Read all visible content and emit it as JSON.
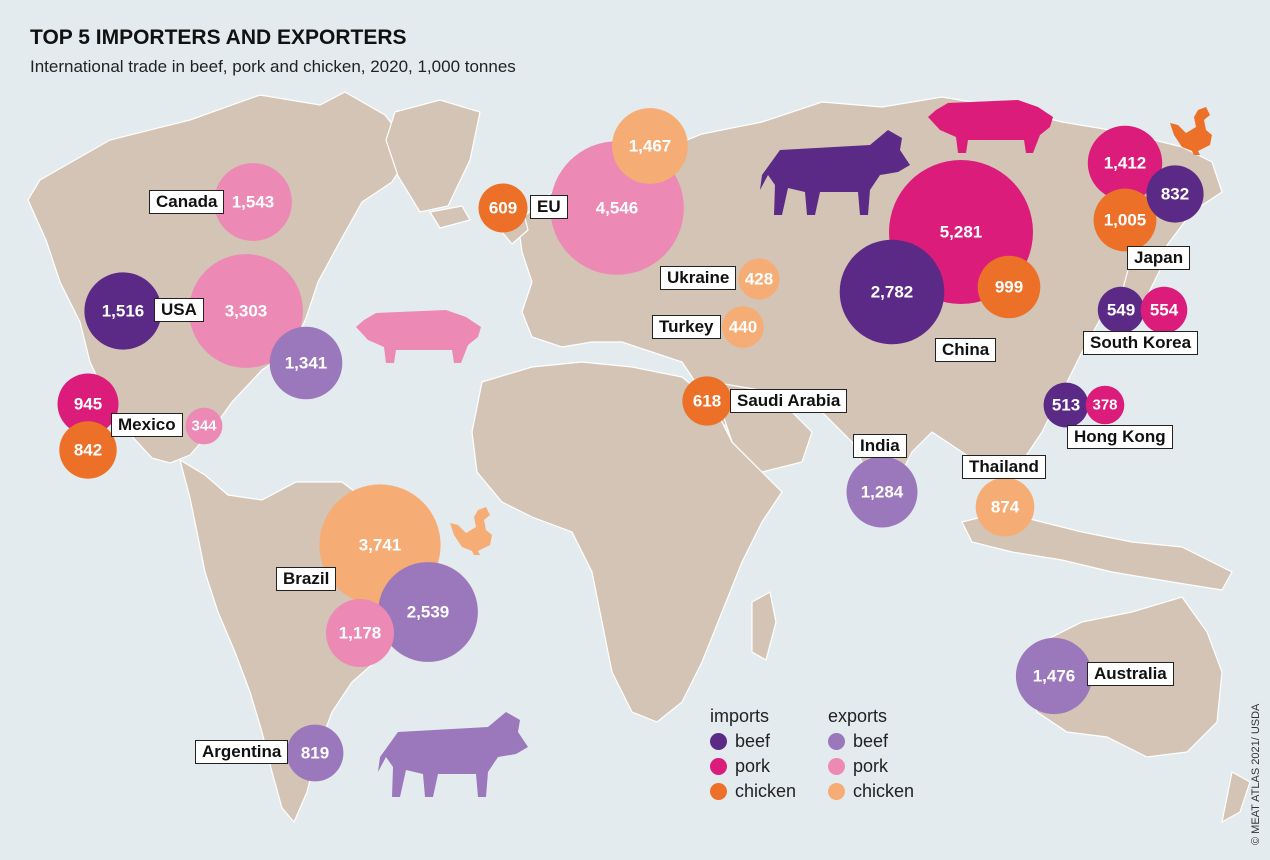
{
  "title": "TOP 5 IMPORTERS AND EXPORTERS",
  "subtitle": "International trade in beef, pork and chicken, 2020, 1,000 tonnes",
  "colors": {
    "ocean": "#e4ebee",
    "land": "#d3c4b5",
    "land_dark": "#bca999",
    "imports_beef": "#5b2a86",
    "imports_pork": "#dc1c7b",
    "imports_chicken": "#ec7028",
    "exports_beef": "#9b77bc",
    "exports_pork": "#ec89b5",
    "exports_chicken": "#f5ad75"
  },
  "legend": {
    "imports": {
      "heading": "imports",
      "items": [
        "beef",
        "pork",
        "chicken"
      ]
    },
    "exports": {
      "heading": "exports",
      "items": [
        "beef",
        "pork",
        "chicken"
      ]
    }
  },
  "countries": [
    {
      "name": "Canada"
    },
    {
      "name": "EU"
    },
    {
      "name": "USA"
    },
    {
      "name": "Mexico"
    },
    {
      "name": "Ukraine"
    },
    {
      "name": "Turkey"
    },
    {
      "name": "Saudi Arabia"
    },
    {
      "name": "China"
    },
    {
      "name": "Japan"
    },
    {
      "name": "South Korea"
    },
    {
      "name": "Hong Kong"
    },
    {
      "name": "India"
    },
    {
      "name": "Thailand"
    },
    {
      "name": "Brazil"
    },
    {
      "name": "Argentina"
    },
    {
      "name": "Australia"
    }
  ],
  "bubbles": [
    {
      "country": "Canada",
      "flow": "exports",
      "meat": "pork",
      "value": 1543,
      "label": "1,543"
    },
    {
      "country": "EU",
      "flow": "imports",
      "meat": "chicken",
      "value": 609,
      "label": "609"
    },
    {
      "country": "EU",
      "flow": "exports",
      "meat": "pork",
      "value": 4546,
      "label": "4,546"
    },
    {
      "country": "EU",
      "flow": "exports",
      "meat": "chicken",
      "value": 1467,
      "label": "1,467"
    },
    {
      "country": "USA",
      "flow": "imports",
      "meat": "beef",
      "value": 1516,
      "label": "1,516"
    },
    {
      "country": "USA",
      "flow": "exports",
      "meat": "pork",
      "value": 3303,
      "label": "3,303"
    },
    {
      "country": "USA",
      "flow": "exports",
      "meat": "beef",
      "value": 1341,
      "label": "1,341"
    },
    {
      "country": "Mexico",
      "flow": "imports",
      "meat": "pork",
      "value": 945,
      "label": "945"
    },
    {
      "country": "Mexico",
      "flow": "imports",
      "meat": "chicken",
      "value": 842,
      "label": "842"
    },
    {
      "country": "Mexico",
      "flow": "exports",
      "meat": "pork",
      "value": 344,
      "label": "344"
    },
    {
      "country": "Ukraine",
      "flow": "exports",
      "meat": "chicken",
      "value": 428,
      "label": "428"
    },
    {
      "country": "Turkey",
      "flow": "exports",
      "meat": "chicken",
      "value": 440,
      "label": "440"
    },
    {
      "country": "Saudi Arabia",
      "flow": "imports",
      "meat": "chicken",
      "value": 618,
      "label": "618"
    },
    {
      "country": "China",
      "flow": "imports",
      "meat": "pork",
      "value": 5281,
      "label": "5,281"
    },
    {
      "country": "China",
      "flow": "imports",
      "meat": "beef",
      "value": 2782,
      "label": "2,782"
    },
    {
      "country": "China",
      "flow": "imports",
      "meat": "chicken",
      "value": 999,
      "label": "999"
    },
    {
      "country": "Japan",
      "flow": "imports",
      "meat": "pork",
      "value": 1412,
      "label": "1,412"
    },
    {
      "country": "Japan",
      "flow": "imports",
      "meat": "chicken",
      "value": 1005,
      "label": "1,005"
    },
    {
      "country": "Japan",
      "flow": "imports",
      "meat": "beef",
      "value": 832,
      "label": "832"
    },
    {
      "country": "South Korea",
      "flow": "imports",
      "meat": "beef",
      "value": 549,
      "label": "549"
    },
    {
      "country": "South Korea",
      "flow": "imports",
      "meat": "pork",
      "value": 554,
      "label": "554"
    },
    {
      "country": "Hong Kong",
      "flow": "imports",
      "meat": "beef",
      "value": 513,
      "label": "513"
    },
    {
      "country": "Hong Kong",
      "flow": "imports",
      "meat": "pork",
      "value": 378,
      "label": "378"
    },
    {
      "country": "India",
      "flow": "exports",
      "meat": "beef",
      "value": 1284,
      "label": "1,284"
    },
    {
      "country": "Thailand",
      "flow": "exports",
      "meat": "chicken",
      "value": 874,
      "label": "874"
    },
    {
      "country": "Brazil",
      "flow": "exports",
      "meat": "chicken",
      "value": 3741,
      "label": "3,741"
    },
    {
      "country": "Brazil",
      "flow": "exports",
      "meat": "beef",
      "value": 2539,
      "label": "2,539"
    },
    {
      "country": "Brazil",
      "flow": "exports",
      "meat": "pork",
      "value": 1178,
      "label": "1,178"
    },
    {
      "country": "Argentina",
      "flow": "exports",
      "meat": "beef",
      "value": 819,
      "label": "819"
    },
    {
      "country": "Australia",
      "flow": "exports",
      "meat": "beef",
      "value": 1476,
      "label": "1,476"
    }
  ],
  "icons": [
    {
      "name": "cow-icon",
      "color_key": "imports_beef"
    },
    {
      "name": "pig-icon",
      "color_key": "imports_pork"
    },
    {
      "name": "chicken-icon",
      "color_key": "imports_chicken"
    },
    {
      "name": "pig-icon",
      "color_key": "exports_pork"
    },
    {
      "name": "chicken-icon",
      "color_key": "exports_chicken"
    },
    {
      "name": "cow-icon",
      "color_key": "exports_beef"
    }
  ],
  "credit": "© MEAT ATLAS 2021/ USDA"
}
